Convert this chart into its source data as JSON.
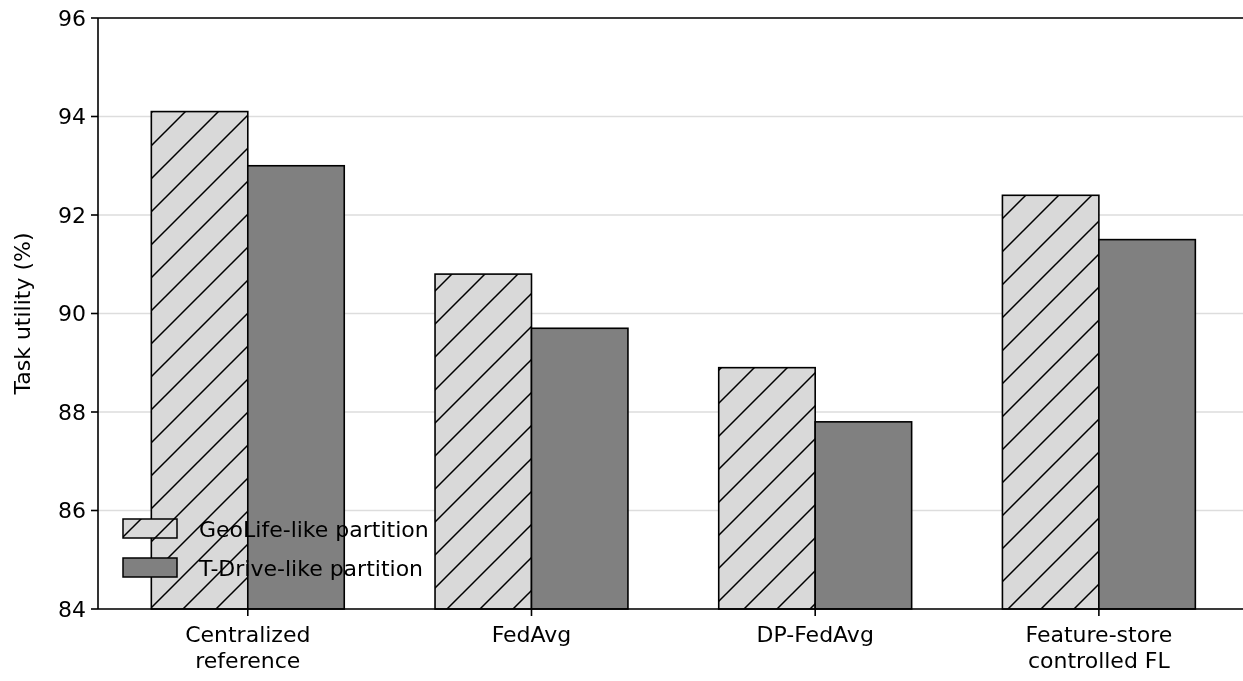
{
  "chart_data": {
    "type": "bar",
    "ylabel": "Task utility (%)",
    "categories": [
      "Centralized\nreference",
      "FedAvg",
      "DP-FedAvg",
      "Feature-store\ncontrolled FL"
    ],
    "series": [
      {
        "name": "GeoLife-like partition",
        "color": "#d9d9d9",
        "values": [
          94.1,
          90.8,
          88.9,
          92.4
        ]
      },
      {
        "name": "T-Drive-like partition",
        "color": "#808080",
        "values": [
          93.0,
          89.7,
          87.8,
          91.5
        ]
      }
    ],
    "ylim": [
      84,
      96
    ],
    "yticks": [
      84,
      86,
      88,
      90,
      92,
      94,
      96
    ],
    "grid": "y",
    "legend": "bottom left"
  }
}
